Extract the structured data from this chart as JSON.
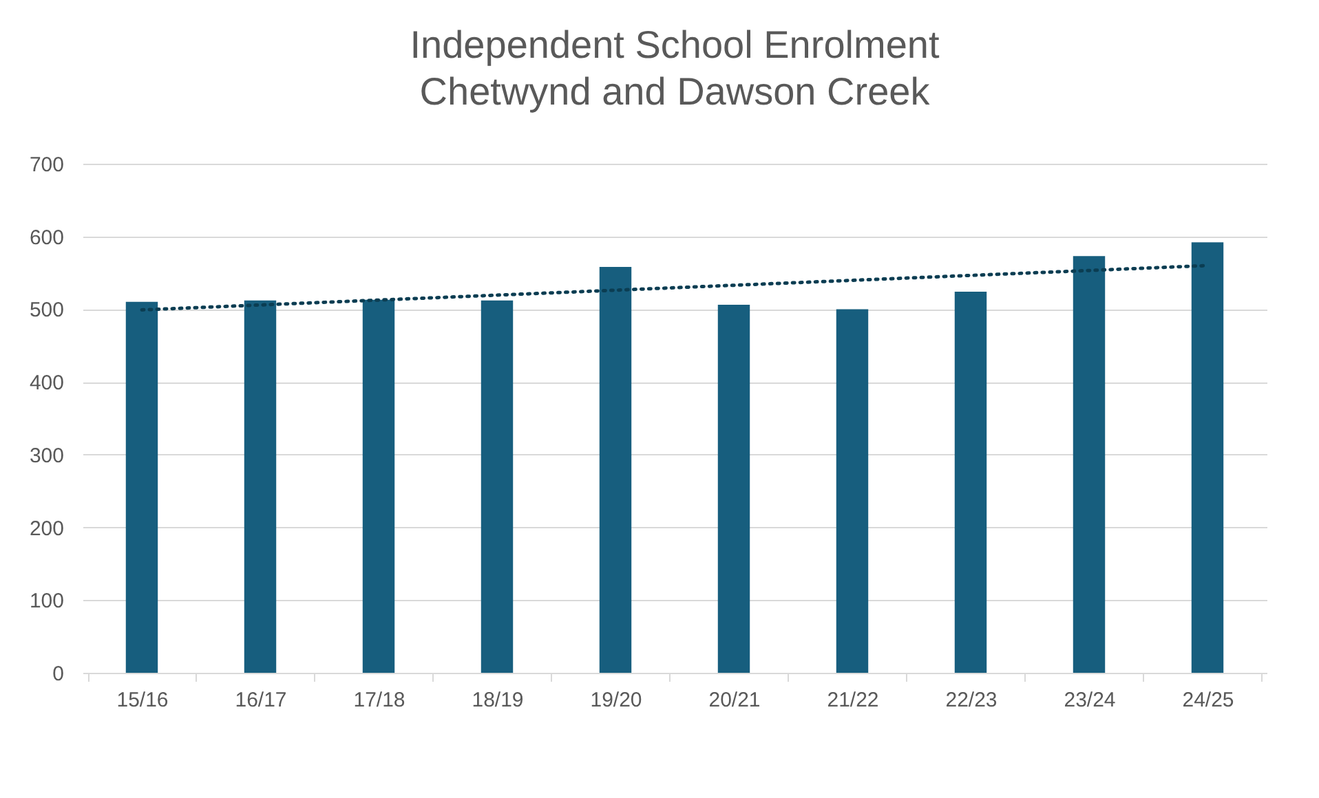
{
  "chart_data": {
    "type": "bar",
    "title": "Independent School Enrolment",
    "subtitle": "Chetwynd and Dawson Creek",
    "categories": [
      "15/16",
      "16/17",
      "17/18",
      "18/19",
      "19/20",
      "20/21",
      "21/22",
      "22/23",
      "23/24",
      "24/25"
    ],
    "series": [
      {
        "color": "#175e7e",
        "values": [
          510,
          512,
          513,
          512,
          558,
          506,
          500,
          524,
          573,
          592
        ]
      },
      {
        "type": "line",
        "color": "#0b3d52",
        "line_style": "dotted",
        "x": [
          "15/16",
          "24/25"
        ],
        "values": [
          499,
          560
        ]
      }
    ],
    "ylim": [
      0,
      700
    ],
    "yticks": [
      0,
      100,
      200,
      300,
      400,
      500,
      600,
      700
    ],
    "grid": "y"
  }
}
